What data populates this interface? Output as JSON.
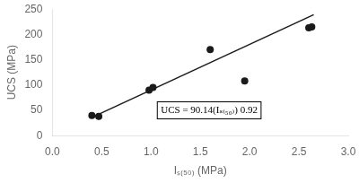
{
  "chart_data": {
    "type": "scatter",
    "x_label": "Iₛ₍₅₀₎ (MPa)",
    "y_label": "UCS (MPa)",
    "series": [
      {
        "type": "scatter",
        "color": "#1a1a1a",
        "marker": "circle",
        "x": [
          0.4,
          0.47,
          0.98,
          1.02,
          1.6,
          1.95,
          2.6,
          2.63
        ],
        "values": [
          40,
          38,
          90,
          95,
          170,
          108,
          213,
          215
        ]
      },
      {
        "type": "line",
        "color": "#1a1a1a",
        "line_style": "solid",
        "x": [
          0.4,
          2.65
        ],
        "values": [
          36.0,
          239.0
        ]
      }
    ],
    "xlim": [
      0.0,
      3.0
    ],
    "ylim": [
      0,
      250
    ],
    "xticks": [
      {
        "value": 0.0,
        "label": "0.0"
      },
      0.5,
      {
        "value": 1.0,
        "label": "1.0"
      },
      1.5,
      {
        "value": 2.0,
        "label": "2.0"
      },
      2.5,
      {
        "value": 3.0,
        "label": "3.0"
      }
    ],
    "yticks": [
      0,
      50,
      100,
      150,
      200,
      250
    ],
    "grid": false,
    "annotations": [
      {
        "text": "UCS = 90.14(Iₛ₍₅₀₎) 0.92",
        "x": 1.1,
        "y": 50
      }
    ]
  }
}
